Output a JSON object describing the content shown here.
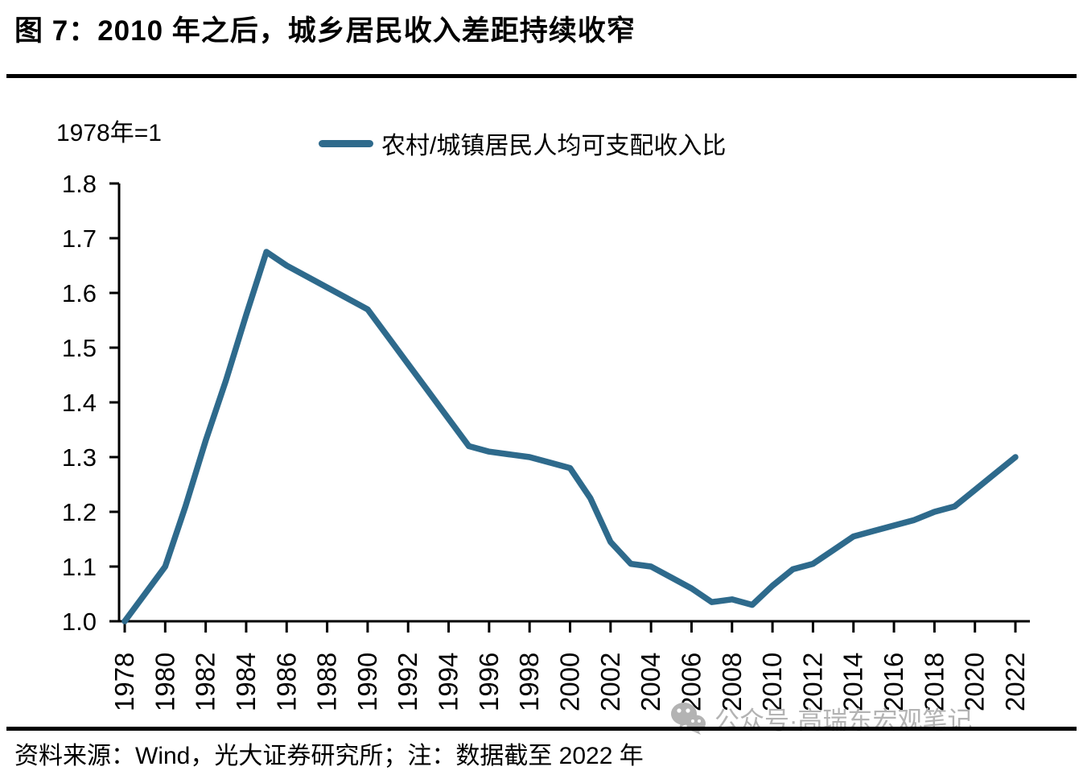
{
  "title": "图 7：2010 年之后，城乡居民收入差距持续收窄",
  "axis_note": "1978年=1",
  "legend": {
    "label": "农村/城镇居民人均可支配收入比"
  },
  "source_note": "资料来源：Wind，光大证券研究所；注：数据截至 2022 年",
  "watermark": {
    "text": "公众号·高瑞东宏观笔记"
  },
  "colors": {
    "line": "#2e6a8c",
    "axis": "#000000",
    "text": "#000000",
    "watermark": "#b3b3b3"
  },
  "chart_data": {
    "type": "line",
    "title": "图 7：2010 年之后，城乡居民收入差距持续收窄",
    "xlabel": "",
    "ylabel": "1978年=1",
    "x": [
      1978,
      1979,
      1980,
      1981,
      1982,
      1983,
      1984,
      1985,
      1986,
      1987,
      1988,
      1989,
      1990,
      1991,
      1992,
      1993,
      1994,
      1995,
      1996,
      1997,
      1998,
      1999,
      2000,
      2001,
      2002,
      2003,
      2004,
      2005,
      2006,
      2007,
      2008,
      2009,
      2010,
      2011,
      2012,
      2013,
      2014,
      2015,
      2016,
      2017,
      2018,
      2019,
      2020,
      2021,
      2022
    ],
    "series": [
      {
        "name": "农村/城镇居民人均可支配收入比",
        "values": [
          1.0,
          1.05,
          1.1,
          1.21,
          1.33,
          1.44,
          1.56,
          1.675,
          1.65,
          1.63,
          1.61,
          1.59,
          1.57,
          1.52,
          1.47,
          1.42,
          1.37,
          1.32,
          1.31,
          1.305,
          1.3,
          1.29,
          1.28,
          1.225,
          1.145,
          1.105,
          1.1,
          1.08,
          1.06,
          1.035,
          1.04,
          1.03,
          1.065,
          1.095,
          1.105,
          1.13,
          1.155,
          1.165,
          1.175,
          1.185,
          1.2,
          1.21,
          1.24,
          1.27,
          1.3
        ]
      }
    ],
    "ylim": [
      1.0,
      1.8
    ],
    "yticks": [
      1.0,
      1.1,
      1.2,
      1.3,
      1.4,
      1.5,
      1.6,
      1.7,
      1.8
    ],
    "xticks": [
      1978,
      1980,
      1982,
      1984,
      1986,
      1988,
      1990,
      1992,
      1994,
      1996,
      1998,
      2000,
      2002,
      2004,
      2006,
      2008,
      2010,
      2012,
      2014,
      2016,
      2018,
      2020,
      2022
    ],
    "grid": false,
    "legend_position": "top-center"
  }
}
